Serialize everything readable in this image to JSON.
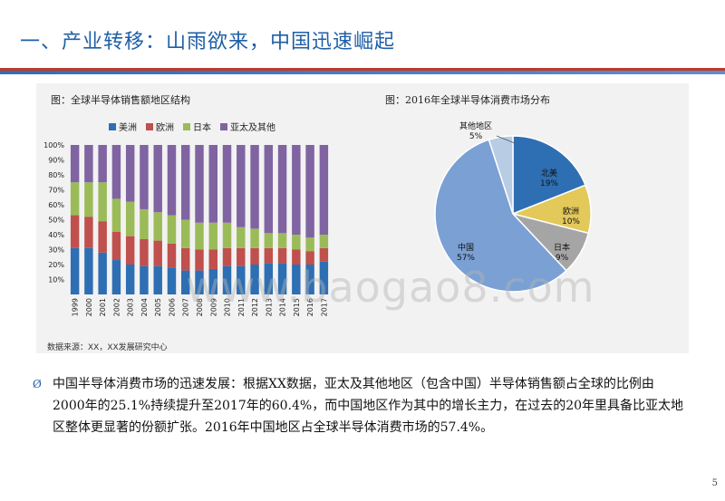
{
  "title": "一、产业转移：山雨欲来，中国迅速崛起",
  "bar_caption": "图：全球半导体销售额地区结构",
  "pie_caption": "图：2016年全球半导体消费市场分布",
  "colors": {
    "title_blue": "#1f5fa6",
    "america": "#2e6fb3",
    "europe": "#c0504d",
    "japan": "#9bbb59",
    "apac": "#8064a2",
    "pie_north_america": "#2e6fb3",
    "pie_europe": "#e3c85a",
    "pie_japan": "#a5a5a5",
    "pie_china": "#7aa0d4",
    "pie_other": "#b8cce4"
  },
  "chart_data": [
    {
      "type": "bar",
      "stacked": true,
      "title": "图：全球半导体销售额地区结构",
      "categories": [
        "1999",
        "2000",
        "2001",
        "2002",
        "2003",
        "2004",
        "2005",
        "2006",
        "2007",
        "2008",
        "2009",
        "2010",
        "2011",
        "2012",
        "2013",
        "2014",
        "2015",
        "2016",
        "2017"
      ],
      "series": [
        {
          "name": "美洲",
          "color": "#2e6fb3",
          "values": [
            31,
            31,
            28,
            23,
            20,
            19,
            19,
            18,
            16,
            16,
            17,
            19,
            19,
            20,
            21,
            21,
            20,
            20,
            22
          ]
        },
        {
          "name": "欧洲",
          "color": "#c0504d",
          "values": [
            22,
            21,
            21,
            19,
            19,
            18,
            17,
            16,
            15,
            14,
            13,
            12,
            12,
            11,
            10,
            10,
            10,
            9,
            9
          ]
        },
        {
          "name": "日本",
          "color": "#9bbb59",
          "values": [
            22,
            23,
            26,
            22,
            23,
            20,
            19,
            19,
            19,
            18,
            18,
            17,
            14,
            13,
            10,
            10,
            10,
            9,
            9
          ]
        },
        {
          "name": "亚太及其他",
          "color": "#8064a2",
          "values": [
            25,
            25,
            25,
            36,
            38,
            43,
            45,
            47,
            50,
            52,
            52,
            52,
            55,
            56,
            59,
            59,
            60,
            62,
            60
          ]
        }
      ],
      "y_ticks": [
        "100%",
        "90%",
        "80%",
        "70%",
        "60%",
        "50%",
        "40%",
        "30%",
        "20%",
        "10%",
        ""
      ],
      "ylim": [
        0,
        100
      ]
    },
    {
      "type": "pie",
      "title": "图：2016年全球半导体消费市场分布",
      "slices": [
        {
          "name": "北美",
          "value": 19,
          "label": "19%",
          "color": "#2e6fb3"
        },
        {
          "name": "欧洲",
          "value": 10,
          "label": "10%",
          "color": "#e3c85a"
        },
        {
          "name": "日本",
          "value": 9,
          "label": "9%",
          "color": "#a5a5a5"
        },
        {
          "name": "中国",
          "value": 57,
          "label": "57%",
          "color": "#7aa0d4"
        },
        {
          "name": "其他地区",
          "value": 5,
          "label": "5%",
          "color": "#b8cce4"
        }
      ]
    }
  ],
  "source": "数据来源：XX，XX发展研究中心",
  "bullet": "Ø",
  "paragraph": "中国半导体消费市场的迅速发展：根据XX数据，亚太及其他地区（包含中国）半导体销售额占全球的比例由2000年的25.1%持续提升至2017年的60.4%，而中国地区作为其中的增长主力，在过去的20年里具备比亚太地区整体更显著的份额扩张。2016年中国地区占全球半导体消费市场的57.4%。",
  "watermark": "www.baogao8.com",
  "page_number": "5"
}
